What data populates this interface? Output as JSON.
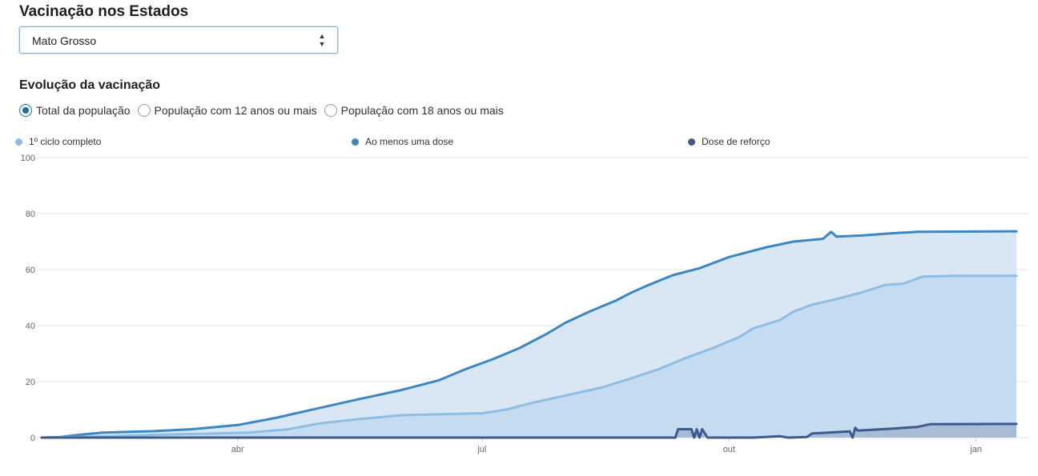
{
  "header": {
    "title": "Vacinação nos Estados"
  },
  "state_select": {
    "value": "Mato Grosso"
  },
  "section": {
    "title": "Evolução da vacinação"
  },
  "population_filter": {
    "selected": 0,
    "options": [
      {
        "label": "Total da população"
      },
      {
        "label": "População com 12 anos ou mais"
      },
      {
        "label": "População com 18 anos ou mais"
      }
    ]
  },
  "chart_data": {
    "type": "area",
    "title": "",
    "xlabel": "",
    "ylabel": "",
    "x_start": "2021-01-18",
    "x_end": "2022-01-16",
    "ylim": [
      0,
      100
    ],
    "y_ticks": [
      0,
      20,
      40,
      60,
      80,
      100
    ],
    "x_ticks": [
      {
        "date": "2021-04-01",
        "label": "abr"
      },
      {
        "date": "2021-07-01",
        "label": "jul"
      },
      {
        "date": "2021-10-01",
        "label": "out"
      },
      {
        "date": "2022-01-01",
        "label": "jan"
      }
    ],
    "grid": true,
    "legend_position": "top",
    "series": [
      {
        "name": "1º ciclo completo",
        "color": "#8dbde2",
        "fill": "#c5dcf0",
        "points": [
          [
            "2021-01-18",
            0
          ],
          [
            "2021-02-10",
            0.4
          ],
          [
            "2021-03-01",
            1
          ],
          [
            "2021-03-20",
            1.4
          ],
          [
            "2021-04-05",
            1.8
          ],
          [
            "2021-04-20",
            3
          ],
          [
            "2021-05-01",
            5
          ],
          [
            "2021-05-15",
            6.5
          ],
          [
            "2021-06-01",
            8
          ],
          [
            "2021-06-15",
            8.3
          ],
          [
            "2021-07-01",
            8.7
          ],
          [
            "2021-07-10",
            10
          ],
          [
            "2021-07-20",
            12.5
          ],
          [
            "2021-08-01",
            15
          ],
          [
            "2021-08-15",
            18
          ],
          [
            "2021-08-25",
            21
          ],
          [
            "2021-09-05",
            24.5
          ],
          [
            "2021-09-15",
            28.5
          ],
          [
            "2021-09-25",
            32
          ],
          [
            "2021-10-05",
            36
          ],
          [
            "2021-10-10",
            39
          ],
          [
            "2021-10-20",
            42
          ],
          [
            "2021-10-25",
            45
          ],
          [
            "2021-11-01",
            47.5
          ],
          [
            "2021-11-10",
            49.5
          ],
          [
            "2021-11-20",
            52
          ],
          [
            "2021-11-28",
            54.5
          ],
          [
            "2021-12-05",
            55
          ],
          [
            "2021-12-12",
            57.5
          ],
          [
            "2021-12-25",
            57.8
          ],
          [
            "2022-01-16",
            57.8
          ]
        ]
      },
      {
        "name": "Ao menos uma dose",
        "color": "#3a87c3",
        "fill": "#d9e7f4",
        "points": [
          [
            "2021-01-18",
            0
          ],
          [
            "2021-01-25",
            0.2
          ],
          [
            "2021-02-01",
            1
          ],
          [
            "2021-02-10",
            1.8
          ],
          [
            "2021-03-01",
            2.3
          ],
          [
            "2021-03-15",
            3
          ],
          [
            "2021-04-01",
            4.5
          ],
          [
            "2021-04-15",
            7
          ],
          [
            "2021-05-01",
            10.5
          ],
          [
            "2021-05-15",
            13.5
          ],
          [
            "2021-06-01",
            17
          ],
          [
            "2021-06-15",
            20.5
          ],
          [
            "2021-06-25",
            24.5
          ],
          [
            "2021-07-05",
            28
          ],
          [
            "2021-07-15",
            32
          ],
          [
            "2021-07-25",
            37
          ],
          [
            "2021-08-01",
            41
          ],
          [
            "2021-08-10",
            45
          ],
          [
            "2021-08-20",
            49
          ],
          [
            "2021-08-25",
            51.5
          ],
          [
            "2021-09-01",
            54.5
          ],
          [
            "2021-09-10",
            58
          ],
          [
            "2021-09-20",
            60.5
          ],
          [
            "2021-10-01",
            64.5
          ],
          [
            "2021-10-15",
            68
          ],
          [
            "2021-10-25",
            70
          ],
          [
            "2021-11-05",
            71
          ],
          [
            "2021-11-08",
            73.5
          ],
          [
            "2021-11-10",
            71.8
          ],
          [
            "2021-11-20",
            72.2
          ],
          [
            "2021-12-01",
            73
          ],
          [
            "2021-12-10",
            73.5
          ],
          [
            "2022-01-16",
            73.7
          ]
        ]
      },
      {
        "name": "Dose de reforço",
        "color": "#3d5a8f",
        "fill": "#a9bcd6",
        "points": [
          [
            "2021-01-18",
            0
          ],
          [
            "2021-09-11",
            0
          ],
          [
            "2021-09-12",
            3
          ],
          [
            "2021-09-17",
            3
          ],
          [
            "2021-09-18",
            0
          ],
          [
            "2021-09-19",
            3
          ],
          [
            "2021-09-20",
            0
          ],
          [
            "2021-09-21",
            3
          ],
          [
            "2021-09-23",
            0
          ],
          [
            "2021-10-10",
            0
          ],
          [
            "2021-10-20",
            0.5
          ],
          [
            "2021-10-23",
            0
          ],
          [
            "2021-10-30",
            0.2
          ],
          [
            "2021-11-01",
            1.5
          ],
          [
            "2021-11-15",
            2.2
          ],
          [
            "2021-11-16",
            0
          ],
          [
            "2021-11-17",
            3.5
          ],
          [
            "2021-11-18",
            2.5
          ],
          [
            "2021-12-01",
            3.2
          ],
          [
            "2021-12-10",
            3.8
          ],
          [
            "2021-12-15",
            4.8
          ],
          [
            "2022-01-16",
            4.9
          ]
        ]
      }
    ]
  }
}
